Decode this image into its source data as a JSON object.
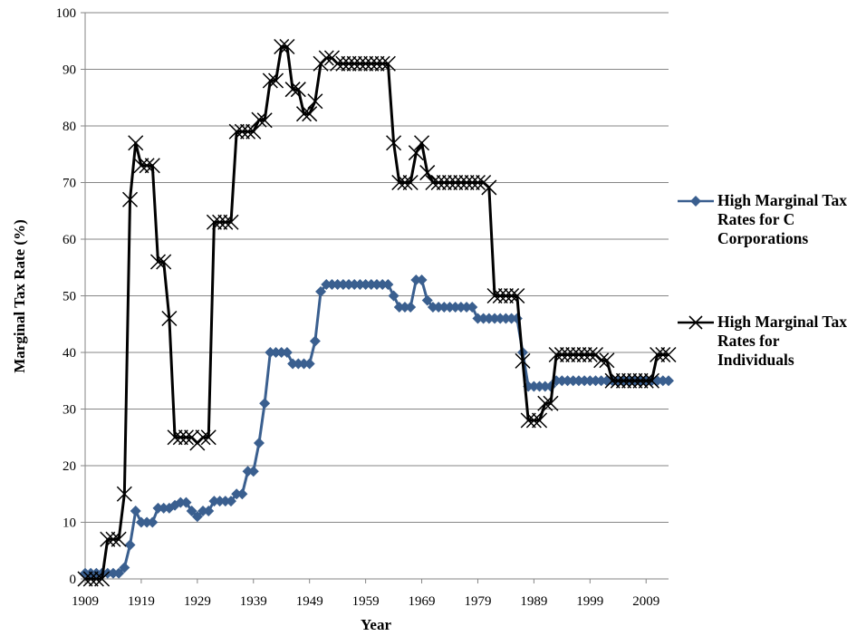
{
  "chart_data": {
    "type": "line",
    "xlabel": "Year",
    "ylabel": "Marginal Tax Rate (%)",
    "xlim": [
      1909,
      2013
    ],
    "ylim": [
      0,
      100
    ],
    "y_ticks": [
      "0",
      "10",
      "20",
      "30",
      "40",
      "50",
      "60",
      "70",
      "80",
      "90",
      "100"
    ],
    "x_ticks": [
      "1909",
      "1919",
      "1929",
      "1939",
      "1949",
      "1959",
      "1969",
      "1979",
      "1989",
      "1999",
      "2009"
    ],
    "grid": "horizontal",
    "legend_position": "right",
    "series": [
      {
        "name": "High Marginal Tax Rates for C Corporations",
        "marker": "diamond",
        "color": "#3a5f8f",
        "points": [
          [
            1909,
            1
          ],
          [
            1910,
            1
          ],
          [
            1911,
            1
          ],
          [
            1912,
            1
          ],
          [
            1913,
            1
          ],
          [
            1914,
            1
          ],
          [
            1915,
            1
          ],
          [
            1916,
            2
          ],
          [
            1917,
            6
          ],
          [
            1918,
            12
          ],
          [
            1919,
            10
          ],
          [
            1920,
            10
          ],
          [
            1921,
            10
          ],
          [
            1922,
            12.5
          ],
          [
            1923,
            12.5
          ],
          [
            1924,
            12.5
          ],
          [
            1925,
            13
          ],
          [
            1926,
            13.5
          ],
          [
            1927,
            13.5
          ],
          [
            1928,
            12
          ],
          [
            1929,
            11
          ],
          [
            1930,
            12
          ],
          [
            1931,
            12
          ],
          [
            1932,
            13.75
          ],
          [
            1933,
            13.75
          ],
          [
            1934,
            13.75
          ],
          [
            1935,
            13.75
          ],
          [
            1936,
            15
          ],
          [
            1937,
            15
          ],
          [
            1938,
            19
          ],
          [
            1939,
            19
          ],
          [
            1940,
            24
          ],
          [
            1941,
            31
          ],
          [
            1942,
            40
          ],
          [
            1943,
            40
          ],
          [
            1944,
            40
          ],
          [
            1945,
            40
          ],
          [
            1946,
            38
          ],
          [
            1947,
            38
          ],
          [
            1948,
            38
          ],
          [
            1949,
            38
          ],
          [
            1950,
            42
          ],
          [
            1951,
            50.75
          ],
          [
            1952,
            52
          ],
          [
            1953,
            52
          ],
          [
            1954,
            52
          ],
          [
            1955,
            52
          ],
          [
            1956,
            52
          ],
          [
            1957,
            52
          ],
          [
            1958,
            52
          ],
          [
            1959,
            52
          ],
          [
            1960,
            52
          ],
          [
            1961,
            52
          ],
          [
            1962,
            52
          ],
          [
            1963,
            52
          ],
          [
            1964,
            50
          ],
          [
            1965,
            48
          ],
          [
            1966,
            48
          ],
          [
            1967,
            48
          ],
          [
            1968,
            52.8
          ],
          [
            1969,
            52.8
          ],
          [
            1970,
            49.2
          ],
          [
            1971,
            48
          ],
          [
            1972,
            48
          ],
          [
            1973,
            48
          ],
          [
            1974,
            48
          ],
          [
            1975,
            48
          ],
          [
            1976,
            48
          ],
          [
            1977,
            48
          ],
          [
            1978,
            48
          ],
          [
            1979,
            46
          ],
          [
            1980,
            46
          ],
          [
            1981,
            46
          ],
          [
            1982,
            46
          ],
          [
            1983,
            46
          ],
          [
            1984,
            46
          ],
          [
            1985,
            46
          ],
          [
            1986,
            46
          ],
          [
            1987,
            40
          ],
          [
            1988,
            34
          ],
          [
            1989,
            34
          ],
          [
            1990,
            34
          ],
          [
            1991,
            34
          ],
          [
            1992,
            34
          ],
          [
            1993,
            35
          ],
          [
            1994,
            35
          ],
          [
            1995,
            35
          ],
          [
            1996,
            35
          ],
          [
            1997,
            35
          ],
          [
            1998,
            35
          ],
          [
            1999,
            35
          ],
          [
            2000,
            35
          ],
          [
            2001,
            35
          ],
          [
            2002,
            35
          ],
          [
            2003,
            35
          ],
          [
            2004,
            35
          ],
          [
            2005,
            35
          ],
          [
            2006,
            35
          ],
          [
            2007,
            35
          ],
          [
            2008,
            35
          ],
          [
            2009,
            35
          ],
          [
            2010,
            35
          ],
          [
            2011,
            35
          ],
          [
            2012,
            35
          ],
          [
            2013,
            35
          ]
        ]
      },
      {
        "name": "High Marginal Tax Rates for Individuals",
        "marker": "x",
        "color": "#000000",
        "points": [
          [
            1909,
            0
          ],
          [
            1910,
            0
          ],
          [
            1911,
            0
          ],
          [
            1912,
            0
          ],
          [
            1913,
            7
          ],
          [
            1914,
            7
          ],
          [
            1915,
            7
          ],
          [
            1916,
            15
          ],
          [
            1917,
            67
          ],
          [
            1918,
            77
          ],
          [
            1919,
            73
          ],
          [
            1920,
            73
          ],
          [
            1921,
            73
          ],
          [
            1922,
            56
          ],
          [
            1923,
            56
          ],
          [
            1924,
            46
          ],
          [
            1925,
            25
          ],
          [
            1926,
            25
          ],
          [
            1927,
            25
          ],
          [
            1928,
            25
          ],
          [
            1929,
            24
          ],
          [
            1930,
            25
          ],
          [
            1931,
            25
          ],
          [
            1932,
            63
          ],
          [
            1933,
            63
          ],
          [
            1934,
            63
          ],
          [
            1935,
            63
          ],
          [
            1936,
            79
          ],
          [
            1937,
            79
          ],
          [
            1938,
            79
          ],
          [
            1939,
            79
          ],
          [
            1940,
            81.1
          ],
          [
            1941,
            81
          ],
          [
            1942,
            88
          ],
          [
            1943,
            88
          ],
          [
            1944,
            94
          ],
          [
            1945,
            94
          ],
          [
            1946,
            86.45
          ],
          [
            1947,
            86.45
          ],
          [
            1948,
            82.13
          ],
          [
            1949,
            82.13
          ],
          [
            1950,
            84.36
          ],
          [
            1951,
            91
          ],
          [
            1952,
            92
          ],
          [
            1953,
            92
          ],
          [
            1954,
            91
          ],
          [
            1955,
            91
          ],
          [
            1956,
            91
          ],
          [
            1957,
            91
          ],
          [
            1958,
            91
          ],
          [
            1959,
            91
          ],
          [
            1960,
            91
          ],
          [
            1961,
            91
          ],
          [
            1962,
            91
          ],
          [
            1963,
            91
          ],
          [
            1964,
            77
          ],
          [
            1965,
            70
          ],
          [
            1966,
            70
          ],
          [
            1967,
            70
          ],
          [
            1968,
            75.25
          ],
          [
            1969,
            77
          ],
          [
            1970,
            71.75
          ],
          [
            1971,
            70
          ],
          [
            1972,
            70
          ],
          [
            1973,
            70
          ],
          [
            1974,
            70
          ],
          [
            1975,
            70
          ],
          [
            1976,
            70
          ],
          [
            1977,
            70
          ],
          [
            1978,
            70
          ],
          [
            1979,
            70
          ],
          [
            1980,
            70
          ],
          [
            1981,
            69.13
          ],
          [
            1982,
            50
          ],
          [
            1983,
            50
          ],
          [
            1984,
            50
          ],
          [
            1985,
            50
          ],
          [
            1986,
            50
          ],
          [
            1987,
            38.5
          ],
          [
            1988,
            28
          ],
          [
            1989,
            28
          ],
          [
            1990,
            28
          ],
          [
            1991,
            31
          ],
          [
            1992,
            31
          ],
          [
            1993,
            39.6
          ],
          [
            1994,
            39.6
          ],
          [
            1995,
            39.6
          ],
          [
            1996,
            39.6
          ],
          [
            1997,
            39.6
          ],
          [
            1998,
            39.6
          ],
          [
            1999,
            39.6
          ],
          [
            2000,
            39.6
          ],
          [
            2001,
            38.6
          ],
          [
            2002,
            38.6
          ],
          [
            2003,
            35
          ],
          [
            2004,
            35
          ],
          [
            2005,
            35
          ],
          [
            2006,
            35
          ],
          [
            2007,
            35
          ],
          [
            2008,
            35
          ],
          [
            2009,
            35
          ],
          [
            2010,
            35
          ],
          [
            2011,
            39.6
          ],
          [
            2012,
            39.6
          ],
          [
            2013,
            39.6
          ]
        ]
      }
    ]
  },
  "legend": {
    "items": [
      {
        "label": "High Marginal Tax Rates for C Corporations"
      },
      {
        "label": "High Marginal Tax Rates for Individuals"
      }
    ]
  }
}
